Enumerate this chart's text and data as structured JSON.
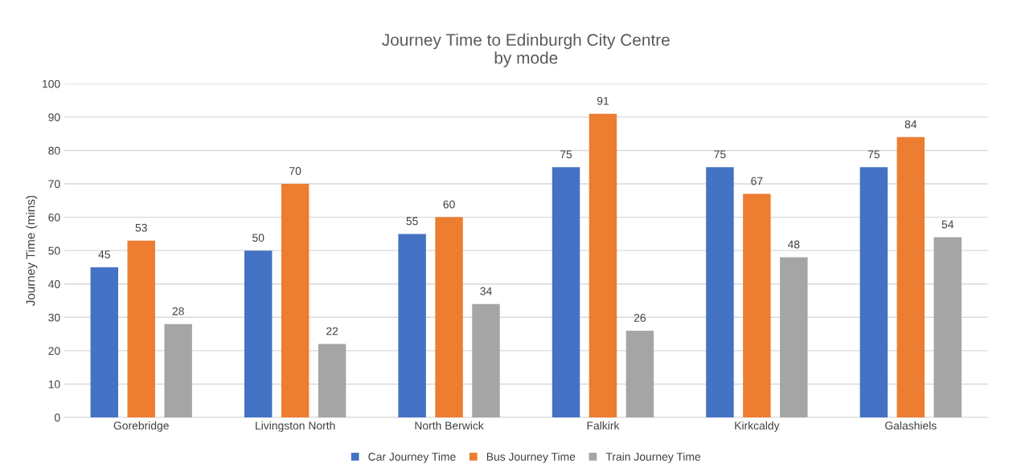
{
  "chart_data": {
    "type": "bar",
    "title": "Journey Time to Edinburgh City Centre\nby mode",
    "ylabel": "Journey Time (mins)",
    "categories": [
      "Gorebridge",
      "Livingston North",
      "North Berwick",
      "Falkirk",
      "Kirkcaldy",
      "Galashiels"
    ],
    "series": [
      {
        "name": "Car Journey Time",
        "color": "#4472c4",
        "values": [
          45,
          50,
          55,
          75,
          75,
          75
        ]
      },
      {
        "name": "Bus Journey Time",
        "color": "#ed7d31",
        "values": [
          53,
          70,
          60,
          91,
          67,
          84
        ]
      },
      {
        "name": "Train Journey Time",
        "color": "#a5a5a5",
        "values": [
          28,
          22,
          34,
          26,
          48,
          54
        ]
      }
    ],
    "ylim": [
      0,
      100
    ],
    "yticks": [
      0,
      10,
      20,
      30,
      40,
      50,
      60,
      70,
      80,
      90,
      100
    ],
    "grid": "y",
    "legend": "bottom",
    "data_labels": true
  }
}
